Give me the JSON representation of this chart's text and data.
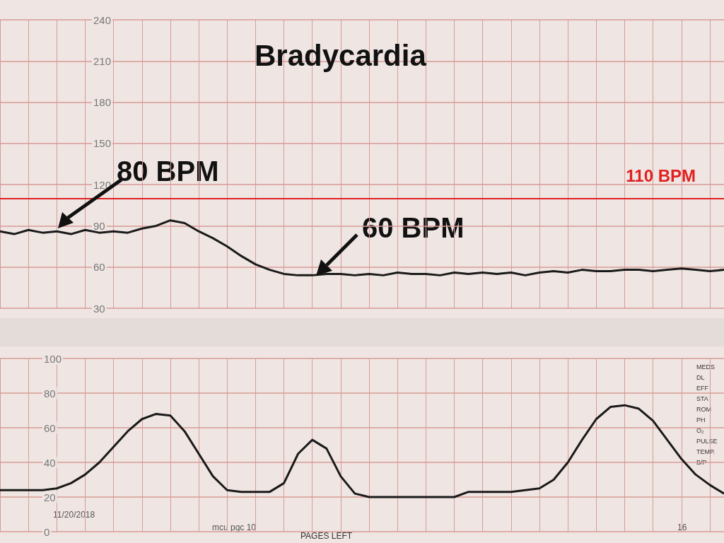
{
  "chart_data": [
    {
      "type": "line",
      "title": "Bradycardia",
      "categories": [
        null,
        null,
        null,
        null,
        null,
        null,
        null,
        null,
        null,
        null,
        null,
        null,
        null,
        null,
        null,
        null,
        null,
        null,
        null,
        null,
        null,
        null,
        null,
        null,
        null,
        null,
        null,
        null,
        null,
        null,
        null,
        null,
        null,
        null,
        null,
        null,
        null,
        null,
        null,
        null,
        null,
        null,
        null,
        null,
        null,
        null,
        null,
        null,
        null,
        null,
        null,
        null
      ],
      "values": [
        86,
        84,
        87,
        85,
        86,
        84,
        87,
        85,
        86,
        85,
        88,
        90,
        94,
        92,
        86,
        81,
        75,
        68,
        62,
        58,
        55,
        54,
        54,
        55,
        55,
        54,
        55,
        54,
        56,
        55,
        55,
        54,
        56,
        55,
        56,
        55,
        56,
        54,
        56,
        57,
        56,
        58,
        57,
        57,
        58,
        58,
        57,
        58,
        59,
        58,
        57,
        58
      ],
      "color": "#1a1a1a",
      "ylim": [
        30,
        240
      ],
      "yticks": [
        30,
        60,
        90,
        120,
        150,
        180,
        210,
        240
      ],
      "grid": true,
      "tick_labels": "y",
      "ref_lines": [
        {
          "axis": "y",
          "value": 110,
          "label": "110 BPM",
          "color": "#e02020"
        }
      ],
      "annotations": [
        "80 BPM",
        "60 BPM"
      ]
    },
    {
      "type": "line",
      "categories": [
        null,
        null,
        null,
        null,
        null,
        null,
        null,
        null,
        null,
        null,
        null,
        null,
        null,
        null,
        null,
        null,
        null,
        null,
        null,
        null,
        null,
        null,
        null,
        null,
        null,
        null,
        null,
        null,
        null,
        null,
        null,
        null,
        null,
        null,
        null,
        null,
        null,
        null,
        null,
        null,
        null,
        null,
        null,
        null,
        null,
        null,
        null,
        null,
        null,
        null,
        null,
        null
      ],
      "values": [
        24,
        24,
        24,
        24,
        25,
        28,
        33,
        40,
        49,
        58,
        65,
        68,
        67,
        58,
        45,
        32,
        24,
        23,
        23,
        23,
        28,
        45,
        53,
        48,
        32,
        22,
        20,
        20,
        20,
        20,
        20,
        20,
        20,
        23,
        23,
        23,
        23,
        24,
        25,
        30,
        40,
        53,
        65,
        72,
        73,
        71,
        64,
        53,
        42,
        33,
        27,
        22
      ],
      "color": "#1a1a1a",
      "ylim": [
        0,
        100
      ],
      "yticks": [
        0,
        20,
        40,
        60,
        80,
        100
      ],
      "grid": true,
      "tick_labels": "y",
      "annotations": [
        "MEDS",
        "DL",
        "EFF",
        "STA",
        "ROM",
        "PH",
        "O₂",
        "PULSE",
        "TEMP.",
        "B/P",
        "PAGES LEFT",
        "11/20/2018",
        "mcu pgc 10",
        "16"
      ]
    }
  ]
}
